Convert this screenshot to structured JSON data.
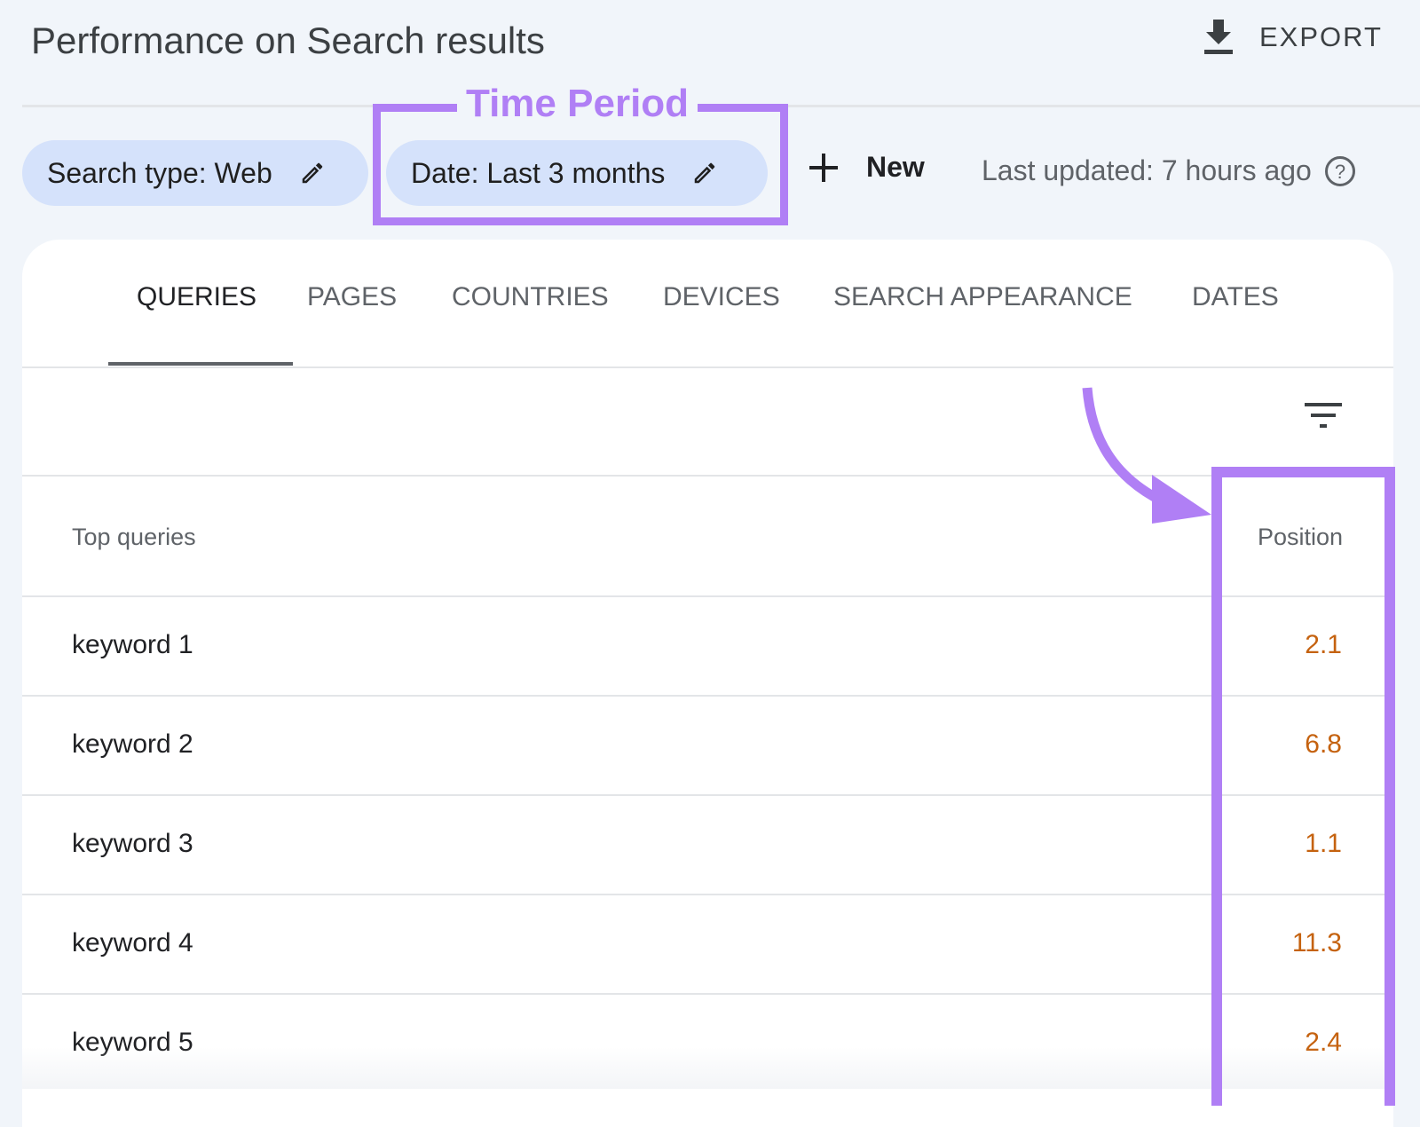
{
  "header": {
    "title": "Performance on Search results",
    "export_label": "EXPORT"
  },
  "filters": {
    "search_type": "Search type: Web",
    "date": "Date: Last 3 months",
    "new_label": "New",
    "last_updated": "Last updated: 7 hours ago"
  },
  "annotation": {
    "time_period_label": "Time Period",
    "highlight_color": "#b07ff5"
  },
  "tabs": [
    {
      "label": "QUERIES",
      "active": true
    },
    {
      "label": "PAGES"
    },
    {
      "label": "COUNTRIES"
    },
    {
      "label": "DEVICES"
    },
    {
      "label": "SEARCH APPEARANCE"
    },
    {
      "label": "DATES"
    }
  ],
  "table": {
    "columns": [
      "Top queries",
      "Position"
    ],
    "rows": [
      {
        "query": "keyword 1",
        "position": "2.1"
      },
      {
        "query": "keyword 2",
        "position": "6.8"
      },
      {
        "query": "keyword 3",
        "position": "1.1"
      },
      {
        "query": "keyword 4",
        "position": "11.3"
      },
      {
        "query": "keyword 5",
        "position": "2.4"
      }
    ]
  },
  "colors": {
    "chip_bg": "#d5e2fb",
    "position_text": "#c5620f"
  }
}
